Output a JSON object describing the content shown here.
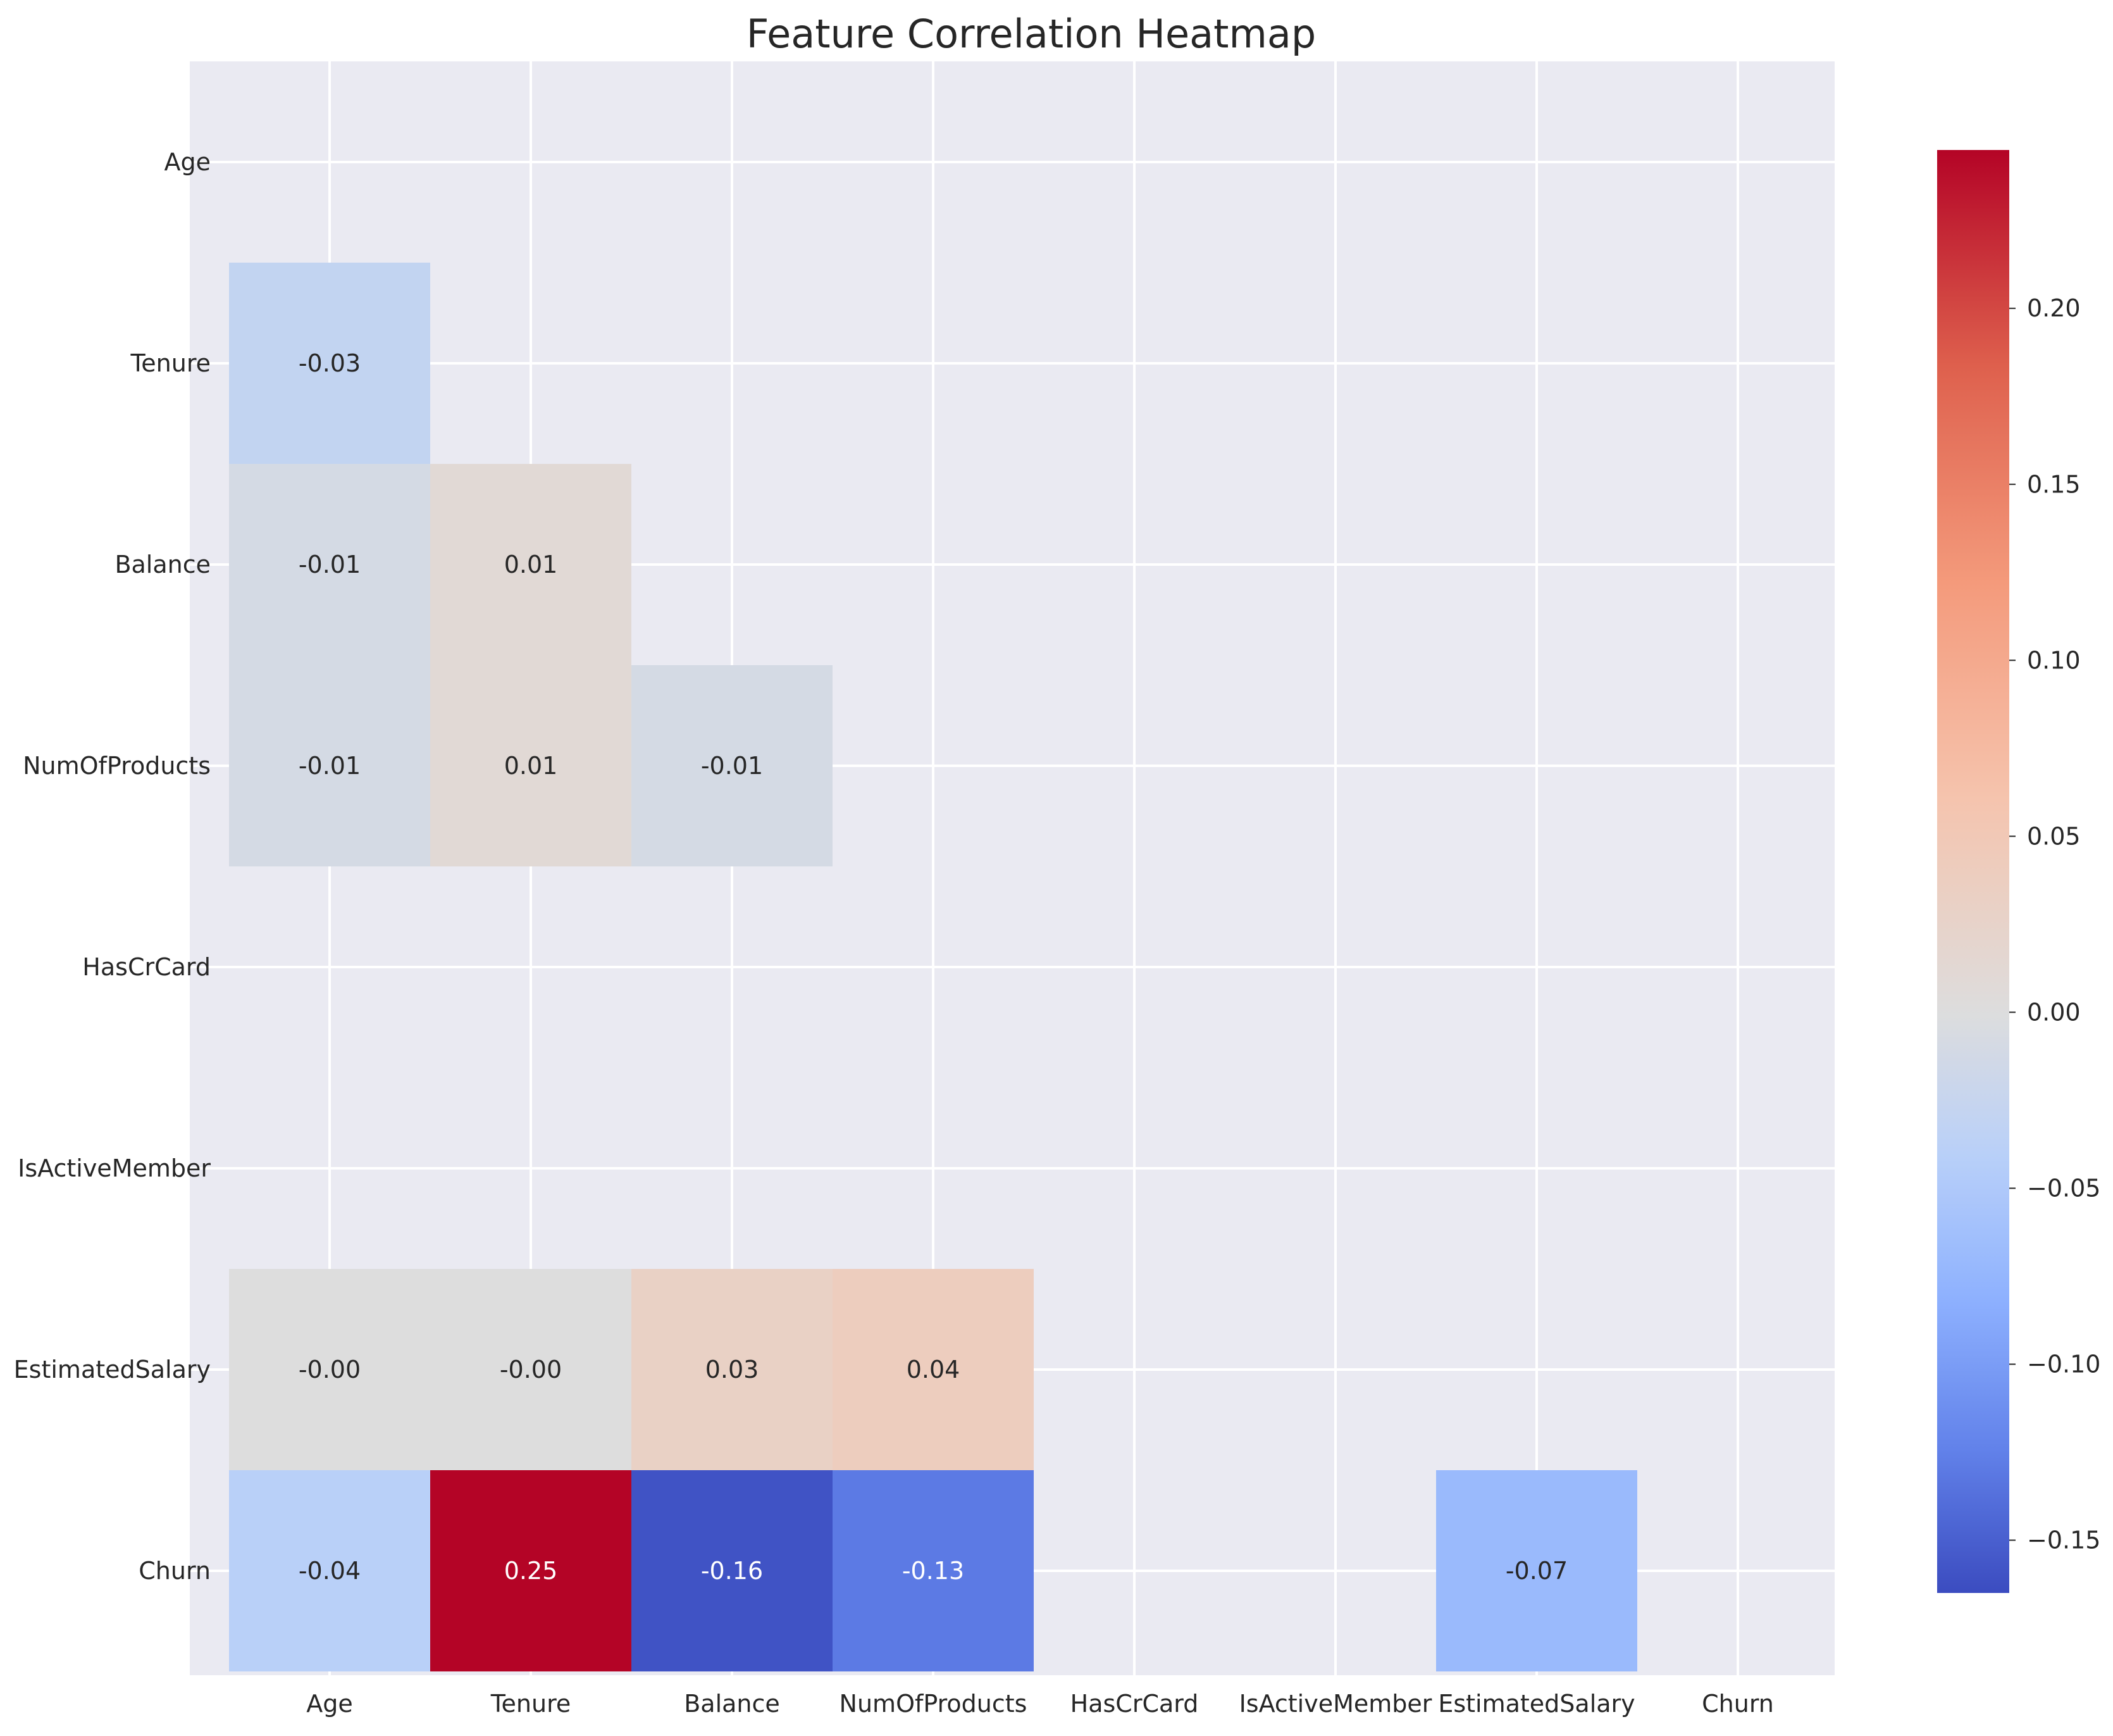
{
  "chart_data": {
    "type": "heatmap",
    "title": "Feature Correlation Heatmap",
    "x_labels": [
      "Age",
      "Tenure",
      "Balance",
      "NumOfProducts",
      "HasCrCard",
      "IsActiveMember",
      "EstimatedSalary",
      "Churn"
    ],
    "y_labels": [
      "Age",
      "Tenure",
      "Balance",
      "NumOfProducts",
      "HasCrCard",
      "IsActiveMember",
      "EstimatedSalary",
      "Churn"
    ],
    "values": [
      [
        null,
        null,
        null,
        null,
        null,
        null,
        null,
        null
      ],
      [
        -0.03,
        null,
        null,
        null,
        null,
        null,
        null,
        null
      ],
      [
        -0.01,
        0.01,
        null,
        null,
        null,
        null,
        null,
        null
      ],
      [
        -0.01,
        0.01,
        -0.01,
        null,
        null,
        null,
        null,
        null
      ],
      [
        null,
        null,
        null,
        null,
        null,
        null,
        null,
        null
      ],
      [
        null,
        null,
        null,
        null,
        null,
        null,
        null,
        null
      ],
      [
        -0.0,
        -0.0,
        0.03,
        0.04,
        null,
        null,
        null,
        null
      ],
      [
        -0.04,
        0.25,
        -0.16,
        -0.13,
        null,
        null,
        -0.07,
        null
      ]
    ],
    "cell_labels": [
      [
        "",
        "",
        "",
        "",
        "",
        "",
        "",
        ""
      ],
      [
        "-0.03",
        "",
        "",
        "",
        "",
        "",
        "",
        ""
      ],
      [
        "-0.01",
        "0.01",
        "",
        "",
        "",
        "",
        "",
        ""
      ],
      [
        "-0.01",
        "0.01",
        "-0.01",
        "",
        "",
        "",
        "",
        ""
      ],
      [
        "",
        "",
        "",
        "",
        "",
        "",
        "",
        ""
      ],
      [
        "",
        "",
        "",
        "",
        "",
        "",
        "",
        ""
      ],
      [
        "-0.00",
        "-0.00",
        "0.03",
        "0.04",
        "",
        "",
        "",
        ""
      ],
      [
        "-0.04",
        "0.25",
        "-0.16",
        "-0.13",
        "",
        "",
        "-0.07",
        ""
      ]
    ],
    "colormap": "coolwarm",
    "color_range": [
      -0.165,
      0.245
    ],
    "colorbar_ticks": [
      "0.20",
      "0.15",
      "0.10",
      "0.05",
      "0.00",
      "−0.05",
      "−0.10",
      "−0.15"
    ],
    "colorbar_tick_values": [
      0.2,
      0.15,
      0.1,
      0.05,
      0.0,
      -0.05,
      -0.1,
      -0.15
    ],
    "grid": true,
    "masked": "upper-triangle-and-missing",
    "colors": {
      "background": "#eaeaf2",
      "grid": "#ffffff",
      "text_dark": "#262626",
      "text_light": "#ffffff"
    }
  }
}
